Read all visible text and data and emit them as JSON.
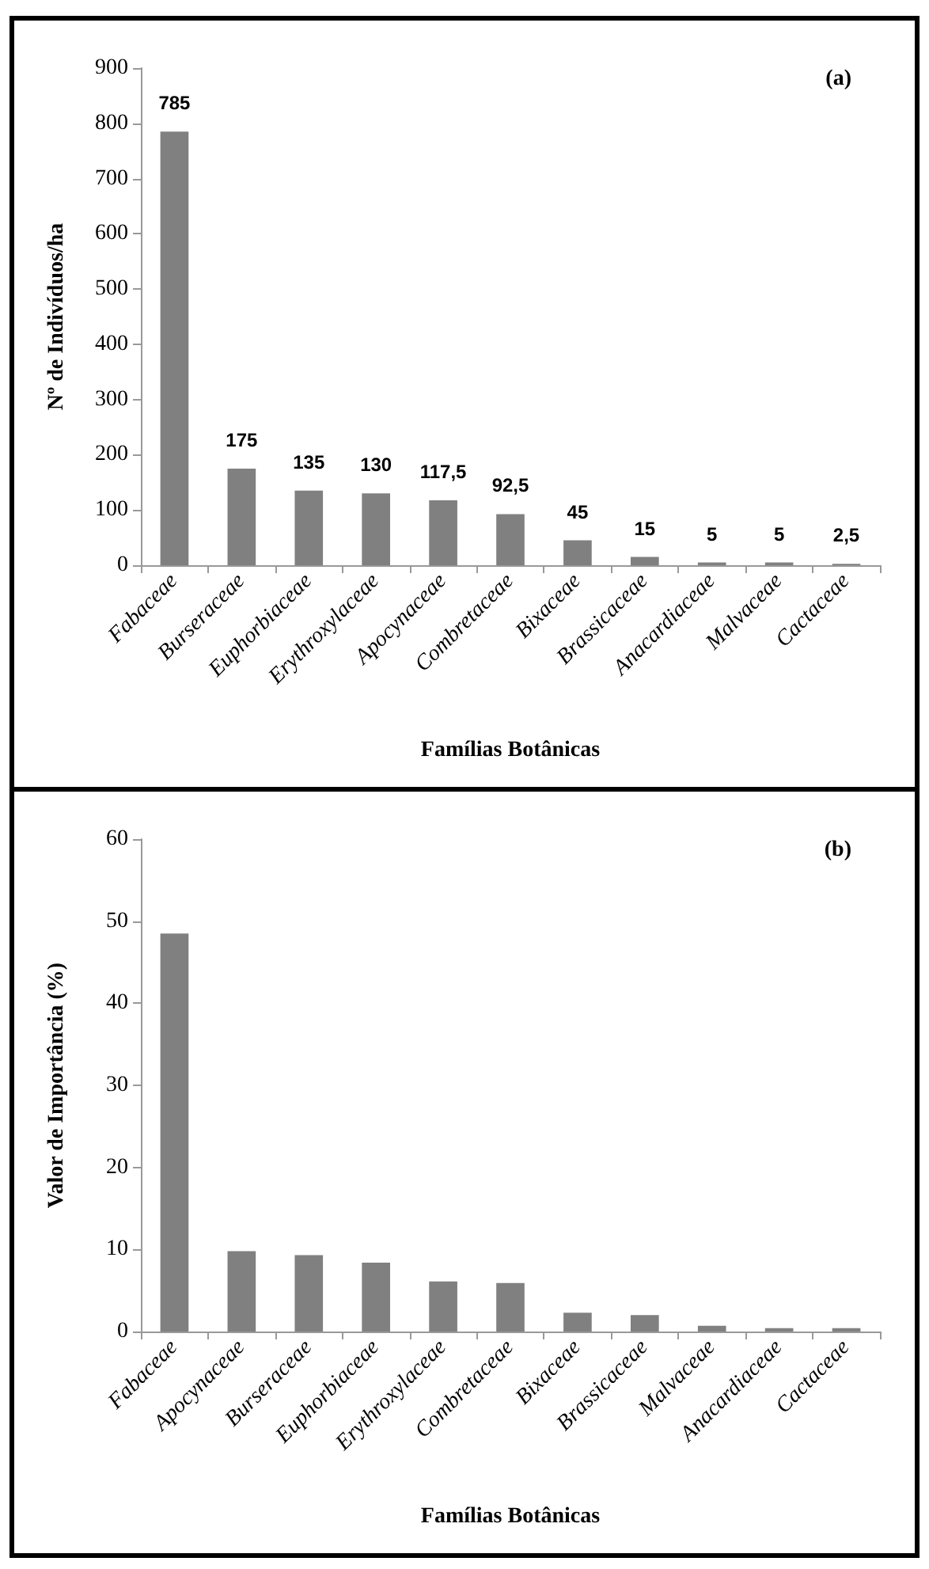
{
  "chart_data": [
    {
      "type": "bar",
      "xlabel": "Famílias Botânicas",
      "ylabel": "Nº de Indivíduos/ha",
      "annotations": [
        "(a)"
      ],
      "categories": [
        "Fabaceae",
        "Burseraceae",
        "Euphorbiaceae",
        "Erythroxylaceae",
        "Apocynaceae",
        "Combretaceae",
        "Bixaceae",
        "Brassicaceae",
        "Anacardiaceae",
        "Malvaceae",
        "Cactaceae"
      ],
      "series": [
        {
          "color": "#808080",
          "values": [
            785,
            175,
            135,
            130,
            117.5,
            92.5,
            45,
            15,
            5,
            5,
            2.5
          ],
          "value_labels": [
            "785",
            "175",
            "135",
            "130",
            "117,5",
            "92,5",
            "45",
            "15",
            "5",
            "5",
            "2,5"
          ]
        }
      ],
      "ylim": [
        0,
        900
      ],
      "yticks": [
        0,
        100,
        200,
        300,
        400,
        500,
        600,
        700,
        800,
        900
      ],
      "grid": false
    },
    {
      "type": "bar",
      "xlabel": "Famílias Botânicas",
      "ylabel": "Valor de Importância (%)",
      "annotations": [
        "(b)"
      ],
      "categories": [
        "Fabaceae",
        "Apocynaceae",
        "Burseraceae",
        "Euphorbiaceae",
        "Erythroxylaceae",
        "Combretaceae",
        "Bixaceae",
        "Brassicaceae",
        "Malvaceae",
        "Anacardiaceae",
        "Cactaceae"
      ],
      "series": [
        {
          "color": "#808080",
          "values": [
            48.5,
            9.8,
            9.3,
            8.4,
            6.1,
            5.9,
            2.3,
            2.0,
            0.7,
            0.4,
            0.4
          ]
        }
      ],
      "ylim": [
        0,
        60
      ],
      "yticks": [
        0,
        10,
        20,
        30,
        40,
        50,
        60
      ],
      "grid": false
    }
  ]
}
